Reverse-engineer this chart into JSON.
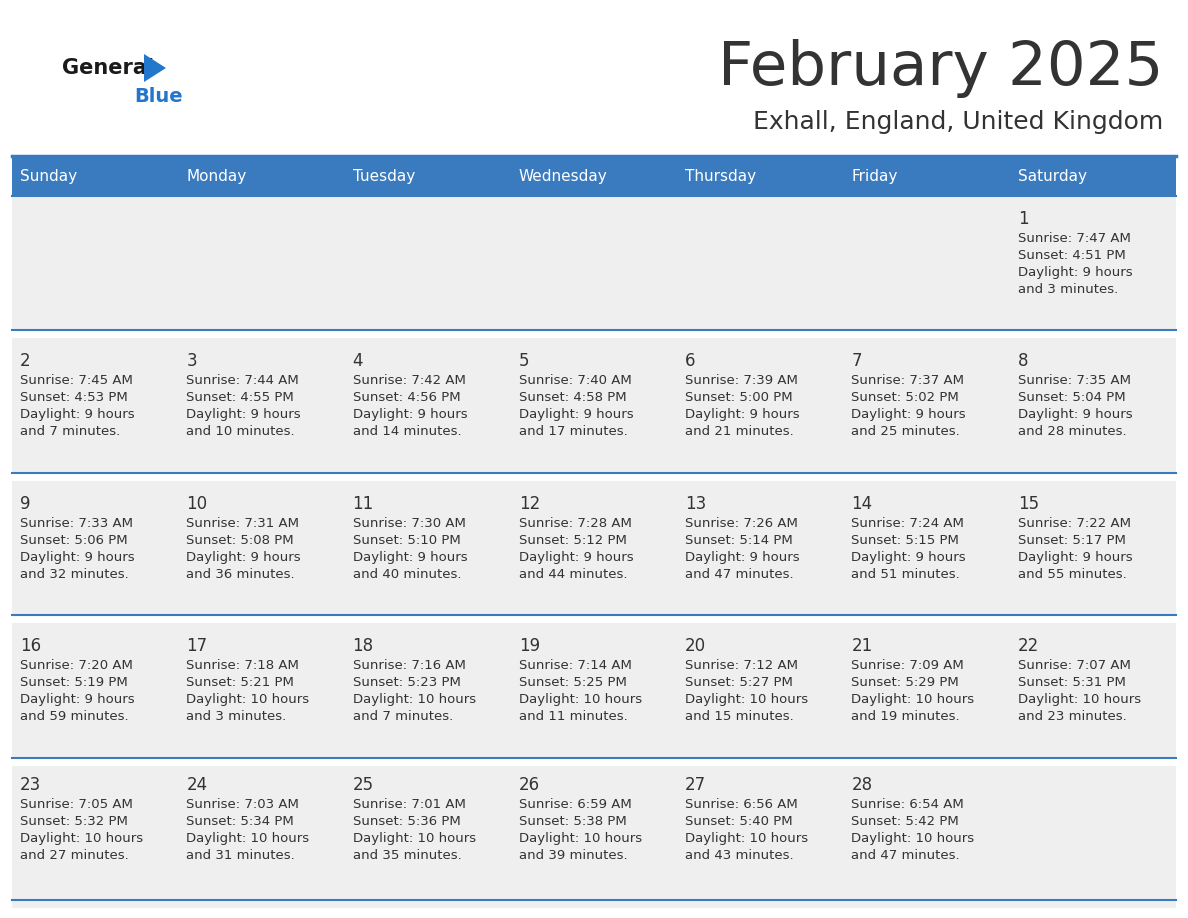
{
  "title": "February 2025",
  "subtitle": "Exhall, England, United Kingdom",
  "header_bg": "#3a7bbf",
  "header_text_color": "#ffffff",
  "day_names": [
    "Sunday",
    "Monday",
    "Tuesday",
    "Wednesday",
    "Thursday",
    "Friday",
    "Saturday"
  ],
  "cell_bg": "#efefef",
  "row_gap_bg": "#ffffff",
  "separator_color": "#3a7bbf",
  "text_color": "#333333",
  "day_num_color": "#333333",
  "logo_general_color": "#1a1a1a",
  "logo_blue_color": "#2277cc",
  "days": [
    {
      "day": 1,
      "col": 6,
      "row": 0,
      "sunrise": "7:47 AM",
      "sunset": "4:51 PM",
      "daylight": "9 hours and 3 minutes."
    },
    {
      "day": 2,
      "col": 0,
      "row": 1,
      "sunrise": "7:45 AM",
      "sunset": "4:53 PM",
      "daylight": "9 hours and 7 minutes."
    },
    {
      "day": 3,
      "col": 1,
      "row": 1,
      "sunrise": "7:44 AM",
      "sunset": "4:55 PM",
      "daylight": "9 hours and 10 minutes."
    },
    {
      "day": 4,
      "col": 2,
      "row": 1,
      "sunrise": "7:42 AM",
      "sunset": "4:56 PM",
      "daylight": "9 hours and 14 minutes."
    },
    {
      "day": 5,
      "col": 3,
      "row": 1,
      "sunrise": "7:40 AM",
      "sunset": "4:58 PM",
      "daylight": "9 hours and 17 minutes."
    },
    {
      "day": 6,
      "col": 4,
      "row": 1,
      "sunrise": "7:39 AM",
      "sunset": "5:00 PM",
      "daylight": "9 hours and 21 minutes."
    },
    {
      "day": 7,
      "col": 5,
      "row": 1,
      "sunrise": "7:37 AM",
      "sunset": "5:02 PM",
      "daylight": "9 hours and 25 minutes."
    },
    {
      "day": 8,
      "col": 6,
      "row": 1,
      "sunrise": "7:35 AM",
      "sunset": "5:04 PM",
      "daylight": "9 hours and 28 minutes."
    },
    {
      "day": 9,
      "col": 0,
      "row": 2,
      "sunrise": "7:33 AM",
      "sunset": "5:06 PM",
      "daylight": "9 hours and 32 minutes."
    },
    {
      "day": 10,
      "col": 1,
      "row": 2,
      "sunrise": "7:31 AM",
      "sunset": "5:08 PM",
      "daylight": "9 hours and 36 minutes."
    },
    {
      "day": 11,
      "col": 2,
      "row": 2,
      "sunrise": "7:30 AM",
      "sunset": "5:10 PM",
      "daylight": "9 hours and 40 minutes."
    },
    {
      "day": 12,
      "col": 3,
      "row": 2,
      "sunrise": "7:28 AM",
      "sunset": "5:12 PM",
      "daylight": "9 hours and 44 minutes."
    },
    {
      "day": 13,
      "col": 4,
      "row": 2,
      "sunrise": "7:26 AM",
      "sunset": "5:14 PM",
      "daylight": "9 hours and 47 minutes."
    },
    {
      "day": 14,
      "col": 5,
      "row": 2,
      "sunrise": "7:24 AM",
      "sunset": "5:15 PM",
      "daylight": "9 hours and 51 minutes."
    },
    {
      "day": 15,
      "col": 6,
      "row": 2,
      "sunrise": "7:22 AM",
      "sunset": "5:17 PM",
      "daylight": "9 hours and 55 minutes."
    },
    {
      "day": 16,
      "col": 0,
      "row": 3,
      "sunrise": "7:20 AM",
      "sunset": "5:19 PM",
      "daylight": "9 hours and 59 minutes."
    },
    {
      "day": 17,
      "col": 1,
      "row": 3,
      "sunrise": "7:18 AM",
      "sunset": "5:21 PM",
      "daylight": "10 hours and 3 minutes."
    },
    {
      "day": 18,
      "col": 2,
      "row": 3,
      "sunrise": "7:16 AM",
      "sunset": "5:23 PM",
      "daylight": "10 hours and 7 minutes."
    },
    {
      "day": 19,
      "col": 3,
      "row": 3,
      "sunrise": "7:14 AM",
      "sunset": "5:25 PM",
      "daylight": "10 hours and 11 minutes."
    },
    {
      "day": 20,
      "col": 4,
      "row": 3,
      "sunrise": "7:12 AM",
      "sunset": "5:27 PM",
      "daylight": "10 hours and 15 minutes."
    },
    {
      "day": 21,
      "col": 5,
      "row": 3,
      "sunrise": "7:09 AM",
      "sunset": "5:29 PM",
      "daylight": "10 hours and 19 minutes."
    },
    {
      "day": 22,
      "col": 6,
      "row": 3,
      "sunrise": "7:07 AM",
      "sunset": "5:31 PM",
      "daylight": "10 hours and 23 minutes."
    },
    {
      "day": 23,
      "col": 0,
      "row": 4,
      "sunrise": "7:05 AM",
      "sunset": "5:32 PM",
      "daylight": "10 hours and 27 minutes."
    },
    {
      "day": 24,
      "col": 1,
      "row": 4,
      "sunrise": "7:03 AM",
      "sunset": "5:34 PM",
      "daylight": "10 hours and 31 minutes."
    },
    {
      "day": 25,
      "col": 2,
      "row": 4,
      "sunrise": "7:01 AM",
      "sunset": "5:36 PM",
      "daylight": "10 hours and 35 minutes."
    },
    {
      "day": 26,
      "col": 3,
      "row": 4,
      "sunrise": "6:59 AM",
      "sunset": "5:38 PM",
      "daylight": "10 hours and 39 minutes."
    },
    {
      "day": 27,
      "col": 4,
      "row": 4,
      "sunrise": "6:56 AM",
      "sunset": "5:40 PM",
      "daylight": "10 hours and 43 minutes."
    },
    {
      "day": 28,
      "col": 5,
      "row": 4,
      "sunrise": "6:54 AM",
      "sunset": "5:42 PM",
      "daylight": "10 hours and 47 minutes."
    }
  ],
  "num_rows": 5,
  "figsize": [
    11.88,
    9.18
  ],
  "dpi": 100
}
